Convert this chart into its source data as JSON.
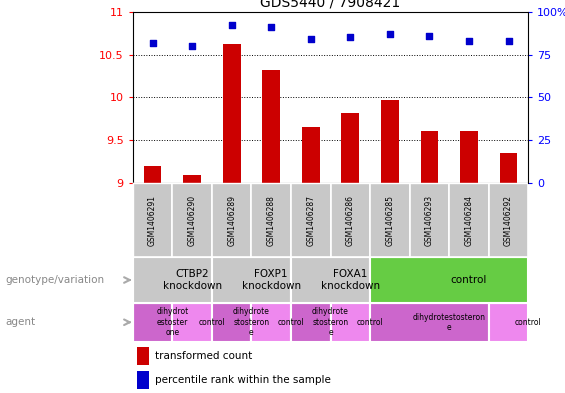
{
  "title": "GDS5440 / 7908421",
  "samples": [
    "GSM1406291",
    "GSM1406290",
    "GSM1406289",
    "GSM1406288",
    "GSM1406287",
    "GSM1406286",
    "GSM1406285",
    "GSM1406293",
    "GSM1406284",
    "GSM1406292"
  ],
  "bar_values": [
    9.2,
    9.09,
    10.62,
    10.32,
    9.65,
    9.82,
    9.97,
    9.6,
    9.6,
    9.35
  ],
  "dot_values": [
    82,
    80,
    92,
    91,
    84,
    85,
    87,
    86,
    83,
    83
  ],
  "ylim": [
    9.0,
    11.0
  ],
  "y2lim": [
    0,
    100
  ],
  "yticks": [
    9.0,
    9.5,
    10.0,
    10.5,
    11.0
  ],
  "y2ticks": [
    0,
    25,
    50,
    75,
    100
  ],
  "bar_color": "#cc0000",
  "dot_color": "#0000cc",
  "genotype_groups": [
    {
      "label": "CTBP2\nknockdown",
      "start": 0,
      "end": 2,
      "color": "#c8c8c8"
    },
    {
      "label": "FOXP1\nknockdown",
      "start": 2,
      "end": 4,
      "color": "#c8c8c8"
    },
    {
      "label": "FOXA1\nknockdown",
      "start": 4,
      "end": 6,
      "color": "#c8c8c8"
    },
    {
      "label": "control",
      "start": 6,
      "end": 10,
      "color": "#66cc44"
    }
  ],
  "agent_groups": [
    {
      "label": "dihydrot\nestoster\none",
      "start": 0,
      "end": 1,
      "color": "#cc66cc"
    },
    {
      "label": "control",
      "start": 1,
      "end": 2,
      "color": "#ee88ee"
    },
    {
      "label": "dihydrote\nstosteron\ne",
      "start": 2,
      "end": 3,
      "color": "#cc66cc"
    },
    {
      "label": "control",
      "start": 3,
      "end": 4,
      "color": "#ee88ee"
    },
    {
      "label": "dihydrote\nstosteron\ne",
      "start": 4,
      "end": 5,
      "color": "#cc66cc"
    },
    {
      "label": "control",
      "start": 5,
      "end": 6,
      "color": "#ee88ee"
    },
    {
      "label": "dihydrotestosteron\ne",
      "start": 6,
      "end": 9,
      "color": "#cc66cc"
    },
    {
      "label": "control",
      "start": 9,
      "end": 10,
      "color": "#ee88ee"
    }
  ],
  "legend_bar_label": "transformed count",
  "legend_dot_label": "percentile rank within the sample",
  "genotype_label": "genotype/variation",
  "agent_label": "agent",
  "sample_bg_color": "#c8c8c8",
  "left_label_color": "#888888",
  "arrow_color": "#aaaaaa"
}
